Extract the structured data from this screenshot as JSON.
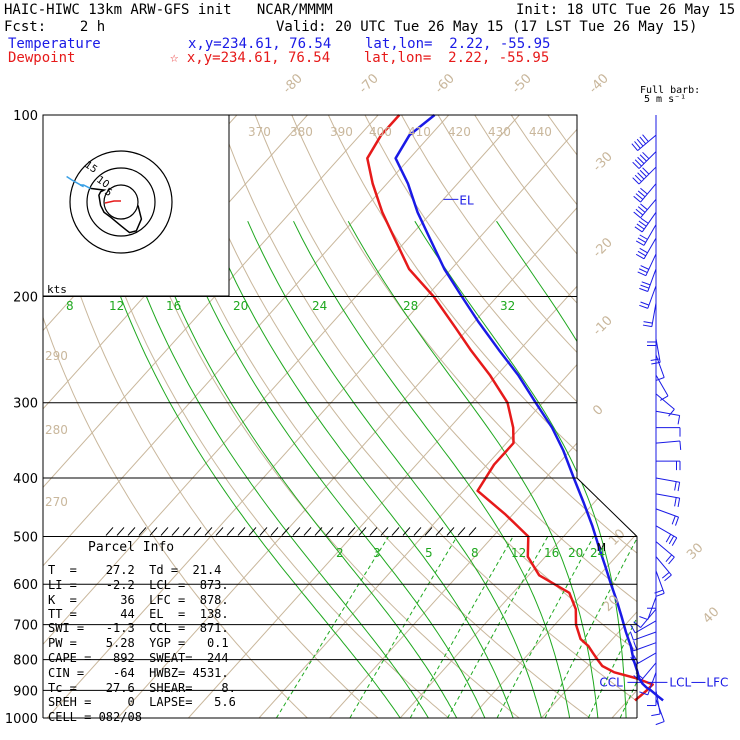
{
  "header": {
    "title": "HAIC-HIWC 13km ARW-GFS init   NCAR/MMMM",
    "init": "Init: 18 UTC Tue 26 May 15",
    "fcst": "Fcst:    2 h",
    "valid": "Valid: 20 UTC Tue 26 May 15 (17 LST Tue 26 May 15)",
    "temperature_label": "Temperature",
    "temperature_loc": "x,y=234.61, 76.54    lat,lon=  2.22, -55.95",
    "dewpoint_label": "Dewpoint",
    "dewpoint_loc": "☆ x,y=234.61, 76.54    lat,lon=  2.22, -55.95"
  },
  "wind_barb_key": {
    "line1": "Full barb:",
    "line2": "5 m s⁻¹"
  },
  "hodograph": {
    "units": "kts",
    "ring_labels": [
      "5",
      "10",
      "15"
    ]
  },
  "parcel_info": {
    "title": "Parcel Info",
    "rows": [
      "T  =    27.2  Td =  21.4",
      "LI =    -2.2  LCL =  873.",
      "K  =      36  LFC =  878.",
      "TT =      44  EL  =  138.",
      "SWI =   -1.3  CCL =  871.",
      "PW =    5.28  YGP =   0.1",
      "CAPE =   892  SWEAT=  244",
      "CIN =    -64  HWBZ= 4531.",
      "Tc =    27.6  SHEAR=    8.",
      "SREH =     0  LAPSE=   5.6",
      "CELL = 082/08"
    ]
  },
  "chart_data": {
    "type": "line",
    "subtype": "skew-T log-P sounding",
    "y_axis": {
      "label": "",
      "scale": "log",
      "range_hPa": [
        1000,
        100
      ],
      "ticks": [
        100,
        200,
        300,
        400,
        500,
        600,
        700,
        800,
        900,
        1000
      ]
    },
    "isotherm_labels": [
      "-80",
      "-70",
      "-60",
      "-50",
      "-40",
      "-30",
      "-20",
      "-10",
      "0",
      "10",
      "20",
      "30",
      "40"
    ],
    "dry_adiabat_labels": [
      "370",
      "380",
      "390",
      "400",
      "410",
      "420",
      "430",
      "440",
      "290",
      "280",
      "270"
    ],
    "mixing_ratio_labels_upper": [
      "8",
      "12",
      "16",
      "20",
      "24",
      "28",
      "32"
    ],
    "mixing_ratio_labels_lower": [
      "2",
      "3",
      "5",
      "8",
      "12",
      "16",
      "20",
      "24"
    ],
    "level_labels": {
      "el": "EL",
      "ccl": "CCL",
      "lcl": "LCL",
      "lfc": "LFC",
      "moist_marker": "M"
    },
    "series": [
      {
        "name": "Temperature",
        "color": "#1a1ae6",
        "pressure_hPa": [
          935,
          920,
          900,
          890,
          878,
          860,
          840,
          800,
          760,
          720,
          680,
          640,
          600,
          560,
          520,
          480,
          440,
          400,
          360,
          330,
          300,
          270,
          245,
          220,
          200,
          180,
          160,
          145,
          130,
          118,
          108,
          100
        ],
        "temp_C": [
          25.0,
          23.7,
          22.0,
          21.0,
          20.0,
          18.8,
          17.8,
          15.6,
          13.5,
          11.0,
          8.5,
          5.8,
          2.8,
          -0.3,
          -3.7,
          -7.3,
          -11.4,
          -16.0,
          -21.0,
          -25.5,
          -31.0,
          -37.0,
          -43.0,
          -49.5,
          -55.0,
          -61.0,
          -67.0,
          -72.0,
          -77.0,
          -82.0,
          -83.0,
          -82.0
        ]
      },
      {
        "name": "Dewpoint",
        "color": "#e61a1a",
        "pressure_hPa": [
          935,
          920,
          900,
          880,
          860,
          840,
          820,
          800,
          780,
          760,
          740,
          700,
          660,
          620,
          580,
          540,
          500,
          460,
          420,
          380,
          350,
          330,
          300,
          270,
          245,
          225,
          200,
          180,
          160,
          145,
          130,
          118,
          108,
          100
        ],
        "dewpoint_C": [
          21.0,
          21.2,
          21.4,
          21.5,
          18.5,
          14.5,
          12.0,
          10.5,
          9.0,
          7.5,
          5.5,
          3.0,
          1.0,
          -2.0,
          -8.5,
          -12.5,
          -15.0,
          -21.0,
          -28.0,
          -29.0,
          -29.0,
          -31.0,
          -35.0,
          -41.0,
          -47.0,
          -52.0,
          -59.0,
          -66.0,
          -72.0,
          -77.0,
          -82.0,
          -86.0,
          -87.0,
          -87.0
        ]
      }
    ],
    "hodograph_trace": {
      "name": "Hodograph",
      "u_kts": [
        5.0,
        6.0,
        4.5,
        2.5,
        0.0,
        -3.0,
        -5.0,
        -6.0,
        -6.5,
        -6.0,
        -5.0,
        -9.0,
        -11.0,
        -12.0,
        -11.0,
        -14.5,
        -16.0
      ],
      "v_kts": [
        -1.0,
        -5.0,
        -8.5,
        -9.0,
        -7.0,
        -4.5,
        -3.0,
        -1.0,
        2.0,
        3.0,
        3.5,
        4.0,
        5.0,
        5.0,
        4.5,
        6.5,
        7.5
      ]
    },
    "winds": {
      "pressure_hPa": [
        108,
        115,
        122,
        130,
        138,
        145,
        152,
        160,
        170,
        180,
        192,
        205,
        220,
        235,
        250,
        270,
        290,
        310,
        330,
        350,
        375,
        400,
        425,
        450,
        480,
        510,
        540,
        570,
        600,
        630,
        660,
        690,
        720,
        750,
        780,
        810,
        840,
        870,
        900,
        930
      ],
      "dir_deg": [
        230,
        225,
        225,
        220,
        220,
        215,
        210,
        210,
        205,
        200,
        200,
        190,
        180,
        170,
        160,
        150,
        130,
        100,
        90,
        85,
        90,
        100,
        100,
        110,
        120,
        130,
        140,
        160,
        180,
        200,
        220,
        240,
        250,
        250,
        240,
        220,
        200,
        180,
        170,
        160
      ],
      "speed_ms": [
        25,
        25,
        24,
        22,
        20,
        18,
        17,
        15,
        15,
        13,
        12,
        10,
        8,
        8,
        5,
        4,
        3,
        3,
        5,
        6,
        8,
        9,
        10,
        12,
        13,
        12,
        10,
        8,
        7,
        6,
        5,
        5,
        7,
        9,
        9,
        8,
        6,
        5,
        5,
        4
      ]
    }
  }
}
